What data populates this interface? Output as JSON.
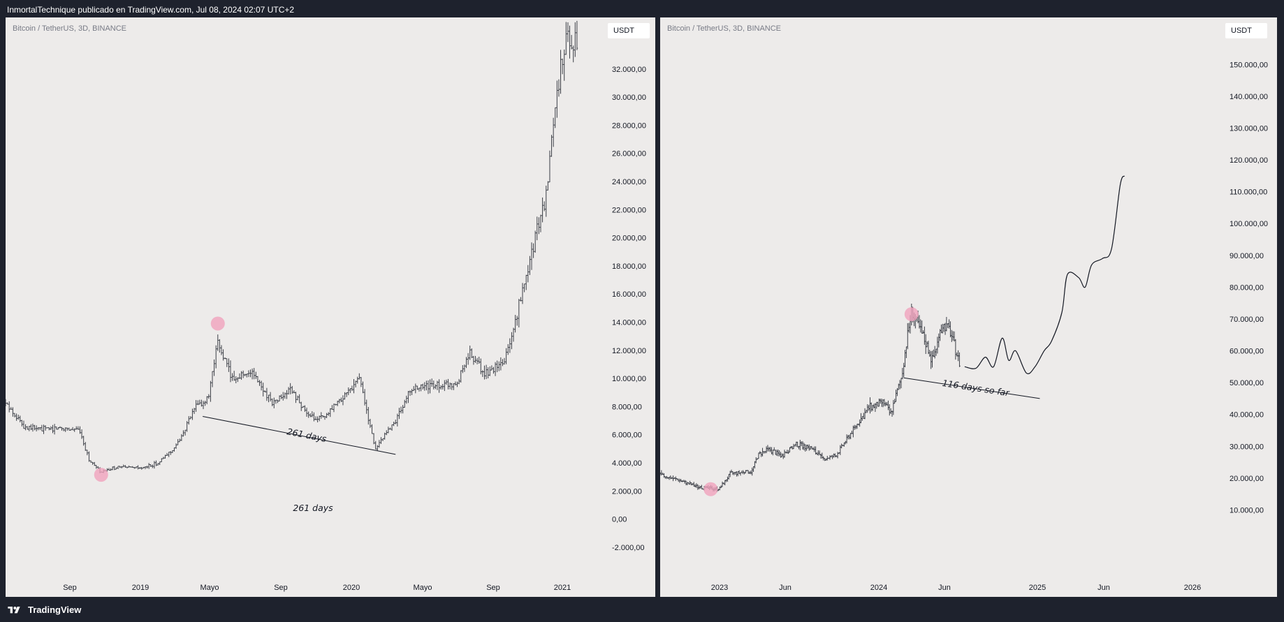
{
  "header": {
    "text": "InmortalTechnique publicado en TradingView.com, Jul 08, 2024 02:07 UTC+2"
  },
  "footer": {
    "brand": "TradingView",
    "logo_icon": "tradingview-logo-icon"
  },
  "colors": {
    "panel_bg": "#edebea",
    "candle": "#3a3d45",
    "marker": "#f0a3bd",
    "page_bg": "#1e222d"
  },
  "panels": [
    {
      "symbol": "Bitcoin / TetherUS, 3D, BINANCE",
      "currency": "USDT",
      "chart_data": {
        "type": "bar",
        "subtype": "ohlc-price-chart",
        "y_ticks": [
          "32.000,00",
          "30.000,00",
          "28.000,00",
          "26.000,00",
          "24.000,00",
          "22.000,00",
          "20.000,00",
          "18.000,00",
          "16.000,00",
          "14.000,00",
          "12.000,00",
          "10.000,00",
          "8.000,00",
          "6.000,00",
          "4.000,00",
          "2.000,00",
          "0,00",
          "-2.000,00"
        ],
        "x_ticks": [
          "Sep",
          "2019",
          "Mayo",
          "Sep",
          "2020",
          "Mayo",
          "Sep",
          "2021"
        ],
        "ylim": [
          -3000,
          34000
        ],
        "x_range": [
          "2018-07-10",
          "2021-03-10"
        ],
        "price_path": [
          [
            "2018-07-10",
            8200
          ],
          [
            "2018-08-10",
            6600
          ],
          [
            "2018-09-05",
            6400
          ],
          [
            "2018-10-10",
            6500
          ],
          [
            "2018-11-10",
            6300
          ],
          [
            "2018-11-25",
            4200
          ],
          [
            "2018-12-15",
            3300
          ],
          [
            "2019-01-10",
            3700
          ],
          [
            "2019-02-20",
            3600
          ],
          [
            "2019-03-20",
            4000
          ],
          [
            "2019-04-20",
            5300
          ],
          [
            "2019-05-20",
            8000
          ],
          [
            "2019-06-10",
            8500
          ],
          [
            "2019-06-26",
            12500
          ],
          [
            "2019-07-20",
            10000
          ],
          [
            "2019-08-20",
            10500
          ],
          [
            "2019-09-25",
            8200
          ],
          [
            "2019-10-25",
            9200
          ],
          [
            "2019-11-25",
            7200
          ],
          [
            "2019-12-20",
            7200
          ],
          [
            "2020-01-20",
            8700
          ],
          [
            "2020-02-15",
            10100
          ],
          [
            "2020-03-12",
            5000
          ],
          [
            "2020-04-15",
            7000
          ],
          [
            "2020-05-10",
            9200
          ],
          [
            "2020-06-15",
            9500
          ],
          [
            "2020-07-25",
            9600
          ],
          [
            "2020-08-15",
            11800
          ],
          [
            "2020-09-10",
            10300
          ],
          [
            "2020-10-10",
            11000
          ],
          [
            "2020-10-25",
            13000
          ],
          [
            "2020-11-20",
            18000
          ],
          [
            "2020-12-20",
            23000
          ],
          [
            "2021-01-05",
            30000
          ],
          [
            "2021-01-20",
            34000
          ],
          [
            "2021-02-10",
            34000
          ]
        ],
        "markers": [
          {
            "date": "2018-12-15",
            "value": 3150
          },
          {
            "date": "2019-06-26",
            "value": 13900
          }
        ],
        "trendline": {
          "start": [
            "2019-06-01",
            7300
          ],
          "end": [
            "2020-04-15",
            4600
          ],
          "label": "261 days"
        },
        "annotation": "261 days"
      }
    },
    {
      "symbol": "Bitcoin / TetherUS, 3D, BINANCE",
      "currency": "USDT",
      "chart_data": {
        "type": "bar",
        "subtype": "ohlc-price-chart-with-projection",
        "y_ticks": [
          "150.000,00",
          "140.000,00",
          "130.000,00",
          "120.000,00",
          "110.000,00",
          "100.000,00",
          "90.000,00",
          "80.000,00",
          "70.000,00",
          "60.000,00",
          "50.000,00",
          "40.000,00",
          "30.000,00",
          "20.000,00",
          "10.000,00"
        ],
        "x_ticks": [
          "2023",
          "Jun",
          "2024",
          "Jun",
          "2025",
          "Jun",
          "2026"
        ],
        "ylim": [
          0,
          155000
        ],
        "x_range": [
          "2022-08-10",
          "2026-02-01"
        ],
        "price_path": [
          [
            "2022-08-10",
            21000
          ],
          [
            "2022-09-20",
            19500
          ],
          [
            "2022-11-10",
            17000
          ],
          [
            "2022-12-25",
            16600
          ],
          [
            "2023-01-20",
            21500
          ],
          [
            "2023-03-10",
            22000
          ],
          [
            "2023-03-25",
            27500
          ],
          [
            "2023-04-20",
            29000
          ],
          [
            "2023-05-20",
            27000
          ],
          [
            "2023-06-20",
            30500
          ],
          [
            "2023-07-25",
            29500
          ],
          [
            "2023-08-20",
            26000
          ],
          [
            "2023-09-20",
            27000
          ],
          [
            "2023-10-25",
            34000
          ],
          [
            "2023-12-05",
            42000
          ],
          [
            "2024-01-10",
            44000
          ],
          [
            "2024-01-25",
            40000
          ],
          [
            "2024-02-20",
            52000
          ],
          [
            "2024-03-05",
            65000
          ],
          [
            "2024-03-14",
            72500
          ],
          [
            "2024-04-15",
            63000
          ],
          [
            "2024-05-01",
            57000
          ],
          [
            "2024-05-25",
            68000
          ],
          [
            "2024-06-10",
            67000
          ],
          [
            "2024-07-05",
            55000
          ]
        ],
        "markers": [
          {
            "date": "2022-12-05",
            "value": 16500
          },
          {
            "date": "2024-03-14",
            "value": 71500
          }
        ],
        "projection": [
          [
            "2024-07-15",
            55000
          ],
          [
            "2024-08-10",
            54500
          ],
          [
            "2024-09-01",
            58000
          ],
          [
            "2024-09-20",
            55000
          ],
          [
            "2024-10-10",
            64000
          ],
          [
            "2024-10-25",
            57000
          ],
          [
            "2024-11-10",
            60000
          ],
          [
            "2024-12-05",
            53000
          ],
          [
            "2024-12-25",
            55000
          ],
          [
            "2025-01-15",
            60000
          ],
          [
            "2025-02-01",
            63000
          ],
          [
            "2025-02-25",
            72000
          ],
          [
            "2025-03-10",
            84000
          ],
          [
            "2025-04-05",
            83000
          ],
          [
            "2025-04-20",
            80000
          ],
          [
            "2025-05-05",
            87000
          ],
          [
            "2025-05-30",
            89000
          ],
          [
            "2025-06-20",
            92000
          ],
          [
            "2025-07-10",
            112000
          ],
          [
            "2025-07-20",
            115000
          ]
        ],
        "trendline": {
          "start": [
            "2024-02-25",
            51500
          ],
          "end": [
            "2025-01-05",
            45000
          ],
          "label": "116 days so far"
        }
      }
    }
  ]
}
